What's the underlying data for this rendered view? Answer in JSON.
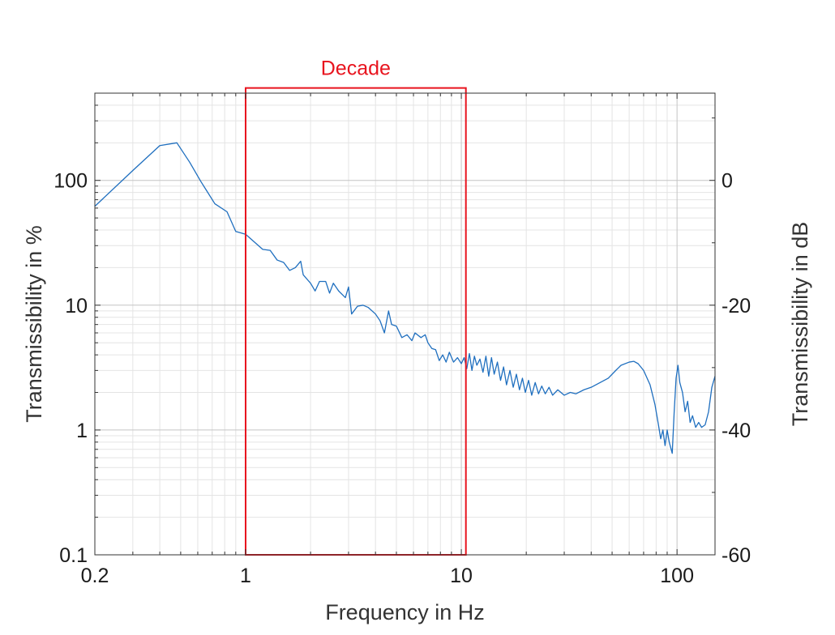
{
  "chart_data": {
    "type": "line",
    "title": "",
    "xlabel": "Frequency in Hz",
    "ylabel": "Transmissibility in %",
    "y2label": "Transmissibility in dB",
    "xscale": "log",
    "yscale": "log",
    "xlim": [
      0.2,
      150
    ],
    "ylim": [
      0.1,
      500
    ],
    "y2lim": [
      -60,
      13.98
    ],
    "grid": true,
    "x_ticks": [
      {
        "value": 0.2,
        "label": "0.2"
      },
      {
        "value": 1,
        "label": "1"
      },
      {
        "value": 10,
        "label": "10"
      },
      {
        "value": 100,
        "label": "100"
      }
    ],
    "y_ticks": [
      {
        "value": 0.1,
        "label": "0.1"
      },
      {
        "value": 1,
        "label": "1"
      },
      {
        "value": 10,
        "label": "10"
      },
      {
        "value": 100,
        "label": "100"
      }
    ],
    "y2_ticks": [
      {
        "value": -60,
        "label": "-60"
      },
      {
        "value": -40,
        "label": "-40"
      },
      {
        "value": -20,
        "label": "-20"
      },
      {
        "value": 0,
        "label": "0"
      }
    ],
    "series": [
      {
        "color": "#1f6fbf",
        "points": [
          [
            0.2,
            62
          ],
          [
            0.3,
            120
          ],
          [
            0.4,
            190
          ],
          [
            0.48,
            200
          ],
          [
            0.55,
            140
          ],
          [
            0.62,
            98
          ],
          [
            0.72,
            65
          ],
          [
            0.82,
            56
          ],
          [
            0.9,
            39
          ],
          [
            1.0,
            37
          ],
          [
            1.1,
            32
          ],
          [
            1.2,
            28
          ],
          [
            1.3,
            27.5
          ],
          [
            1.4,
            23
          ],
          [
            1.5,
            22
          ],
          [
            1.6,
            19
          ],
          [
            1.7,
            20
          ],
          [
            1.8,
            22.5
          ],
          [
            1.85,
            17.5
          ],
          [
            2.0,
            15
          ],
          [
            2.1,
            13
          ],
          [
            2.2,
            15.5
          ],
          [
            2.35,
            15.5
          ],
          [
            2.45,
            12.5
          ],
          [
            2.55,
            15
          ],
          [
            2.7,
            13
          ],
          [
            2.9,
            11.5
          ],
          [
            3.0,
            14
          ],
          [
            3.1,
            8.5
          ],
          [
            3.3,
            9.8
          ],
          [
            3.5,
            10
          ],
          [
            3.7,
            9.6
          ],
          [
            4.0,
            8.5
          ],
          [
            4.2,
            7.5
          ],
          [
            4.4,
            6
          ],
          [
            4.6,
            9
          ],
          [
            4.75,
            7
          ],
          [
            5.0,
            6.8
          ],
          [
            5.3,
            5.5
          ],
          [
            5.6,
            5.8
          ],
          [
            5.9,
            5.2
          ],
          [
            6.1,
            6
          ],
          [
            6.5,
            5.5
          ],
          [
            6.8,
            5.8
          ],
          [
            7.0,
            5
          ],
          [
            7.3,
            4.5
          ],
          [
            7.6,
            4.4
          ],
          [
            7.9,
            3.6
          ],
          [
            8.2,
            4
          ],
          [
            8.5,
            3.5
          ],
          [
            8.8,
            4.2
          ],
          [
            9.2,
            3.5
          ],
          [
            9.6,
            3.8
          ],
          [
            10.0,
            3.4
          ],
          [
            10.3,
            3.8
          ],
          [
            10.6,
            3.1
          ],
          [
            10.9,
            4.1
          ],
          [
            11.2,
            3.0
          ],
          [
            11.5,
            3.9
          ],
          [
            11.8,
            3.3
          ],
          [
            12.2,
            3.7
          ],
          [
            12.6,
            2.9
          ],
          [
            13.0,
            3.9
          ],
          [
            13.4,
            2.7
          ],
          [
            13.8,
            3.8
          ],
          [
            14.2,
            2.8
          ],
          [
            14.7,
            3.5
          ],
          [
            15.2,
            2.5
          ],
          [
            15.7,
            3.2
          ],
          [
            16.2,
            2.3
          ],
          [
            16.8,
            3.0
          ],
          [
            17.4,
            2.2
          ],
          [
            18.0,
            2.8
          ],
          [
            18.6,
            2.1
          ],
          [
            19.2,
            2.6
          ],
          [
            19.8,
            2.0
          ],
          [
            20.5,
            2.5
          ],
          [
            21.2,
            1.9
          ],
          [
            22.0,
            2.4
          ],
          [
            22.8,
            1.95
          ],
          [
            23.6,
            2.25
          ],
          [
            24.5,
            1.95
          ],
          [
            25.5,
            2.2
          ],
          [
            26.5,
            1.9
          ],
          [
            28,
            2.1
          ],
          [
            30,
            1.9
          ],
          [
            32,
            2.0
          ],
          [
            34,
            1.95
          ],
          [
            37,
            2.1
          ],
          [
            40,
            2.2
          ],
          [
            44,
            2.4
          ],
          [
            48,
            2.6
          ],
          [
            52,
            3.0
          ],
          [
            55,
            3.3
          ],
          [
            60,
            3.5
          ],
          [
            63,
            3.55
          ],
          [
            66,
            3.4
          ],
          [
            70,
            3.0
          ],
          [
            75,
            2.3
          ],
          [
            79,
            1.6
          ],
          [
            82,
            1.1
          ],
          [
            84,
            0.85
          ],
          [
            86,
            1.0
          ],
          [
            88,
            0.75
          ],
          [
            90,
            1.0
          ],
          [
            92,
            0.8
          ],
          [
            95,
            0.65
          ],
          [
            97,
            1.4
          ],
          [
            99,
            2.6
          ],
          [
            101,
            3.3
          ],
          [
            103,
            2.4
          ],
          [
            106,
            2.0
          ],
          [
            109,
            1.4
          ],
          [
            112,
            1.7
          ],
          [
            115,
            1.15
          ],
          [
            118,
            1.3
          ],
          [
            122,
            1.05
          ],
          [
            126,
            1.15
          ],
          [
            130,
            1.05
          ],
          [
            135,
            1.1
          ],
          [
            140,
            1.4
          ],
          [
            145,
            2.2
          ],
          [
            150,
            2.7
          ]
        ]
      }
    ],
    "annotations": [
      {
        "type": "rect",
        "label": "Decade",
        "color": "#e8141e",
        "x_range": [
          1.0,
          10.5
        ],
        "y_range": [
          0.1,
          550
        ]
      }
    ]
  }
}
